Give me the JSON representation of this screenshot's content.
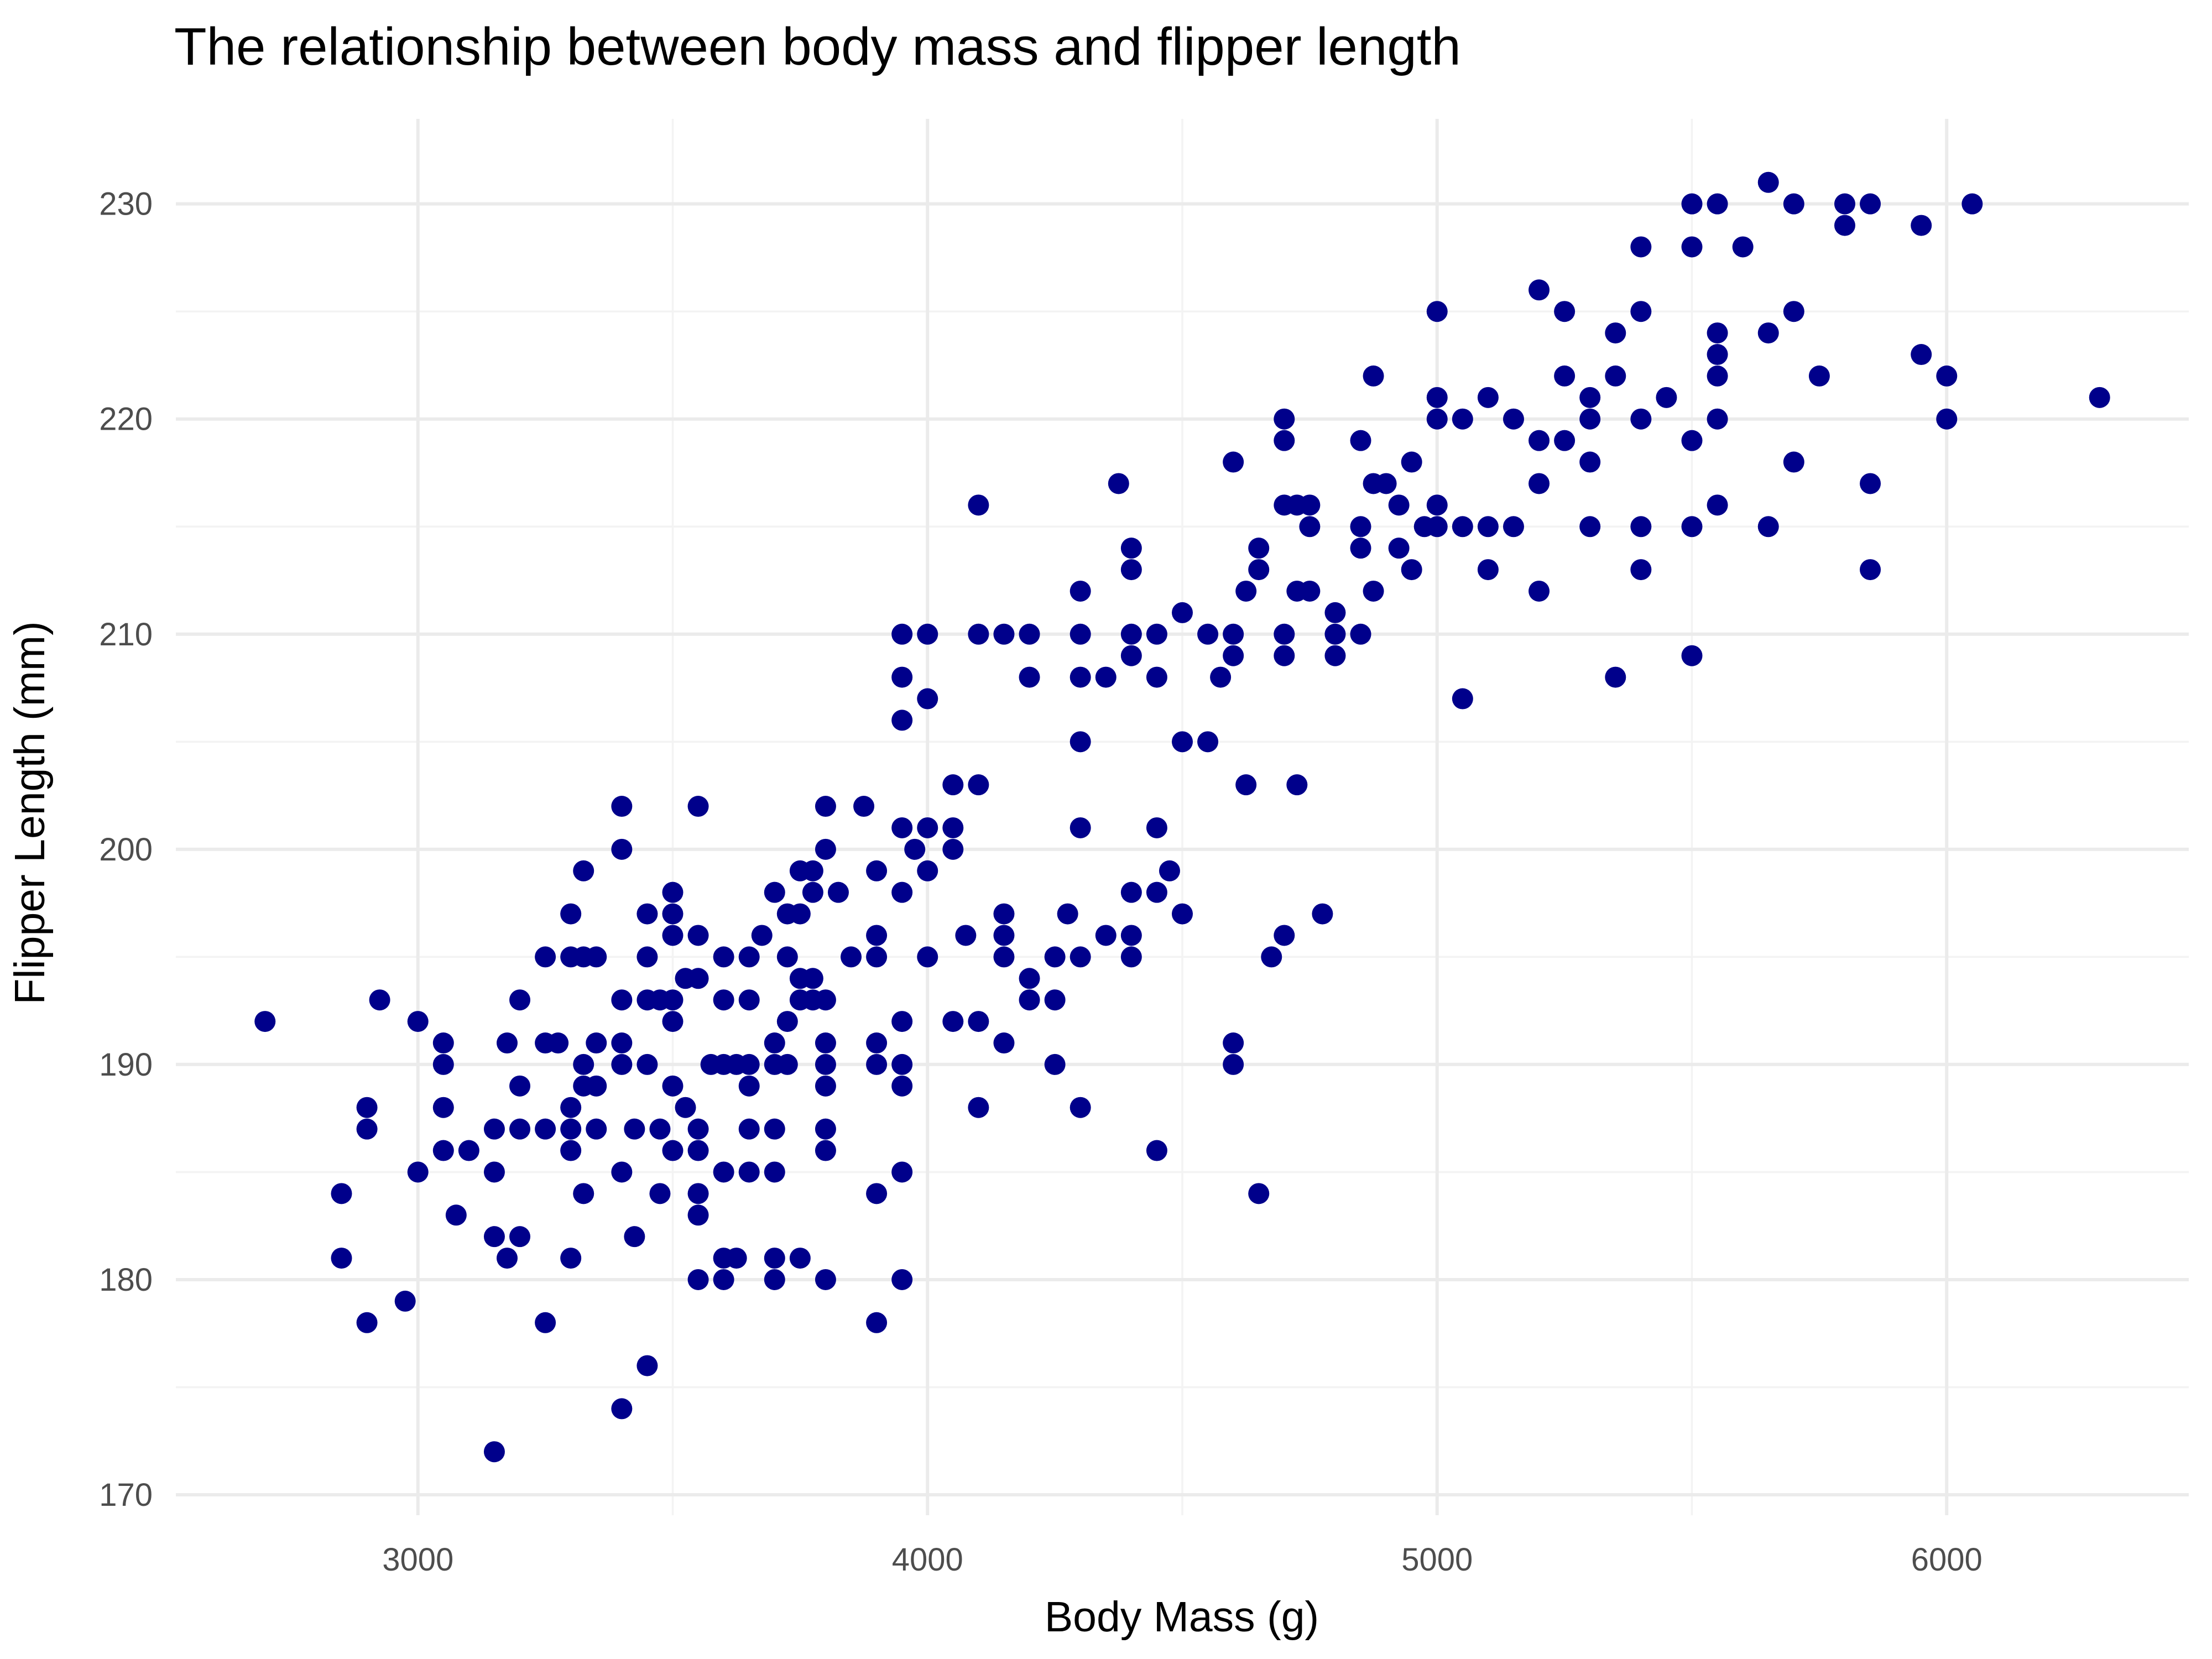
{
  "chart_data": {
    "type": "scatter",
    "title": "The relationship between body mass and flipper length",
    "xlabel": "Body Mass (g)",
    "ylabel": "Flipper Length (mm)",
    "xlim": [
      2525,
      6475
    ],
    "ylim": [
      169.05,
      233.95
    ],
    "x_ticks": [
      3000,
      4000,
      5000,
      6000
    ],
    "y_ticks": [
      170,
      180,
      190,
      200,
      210,
      220,
      230
    ],
    "grid": true,
    "legend": "none",
    "point_color": "#00008b",
    "points": [
      [
        2700,
        192
      ],
      [
        2850,
        184
      ],
      [
        2850,
        181
      ],
      [
        2900,
        188
      ],
      [
        2900,
        187
      ],
      [
        2900,
        178
      ],
      [
        2925,
        193
      ],
      [
        2975,
        179
      ],
      [
        3000,
        192
      ],
      [
        3000,
        185
      ],
      [
        3050,
        191
      ],
      [
        3050,
        190
      ],
      [
        3050,
        188
      ],
      [
        3050,
        186
      ],
      [
        3075,
        183
      ],
      [
        3100,
        186
      ],
      [
        3150,
        187
      ],
      [
        3150,
        185
      ],
      [
        3150,
        182
      ],
      [
        3150,
        172
      ],
      [
        3175,
        191
      ],
      [
        3175,
        181
      ],
      [
        3200,
        193
      ],
      [
        3200,
        189
      ],
      [
        3200,
        187
      ],
      [
        3200,
        182
      ],
      [
        3250,
        195
      ],
      [
        3250,
        191
      ],
      [
        3250,
        187
      ],
      [
        3250,
        178
      ],
      [
        3275,
        191
      ],
      [
        3300,
        197
      ],
      [
        3300,
        195
      ],
      [
        3300,
        188
      ],
      [
        3300,
        187
      ],
      [
        3300,
        186
      ],
      [
        3300,
        181
      ],
      [
        3325,
        195
      ],
      [
        3325,
        199
      ],
      [
        3325,
        190
      ],
      [
        3325,
        189
      ],
      [
        3325,
        184
      ],
      [
        3350,
        195
      ],
      [
        3350,
        191
      ],
      [
        3350,
        189
      ],
      [
        3350,
        187
      ],
      [
        3400,
        202
      ],
      [
        3400,
        200
      ],
      [
        3400,
        193
      ],
      [
        3400,
        191
      ],
      [
        3400,
        190
      ],
      [
        3400,
        185
      ],
      [
        3400,
        174
      ],
      [
        3425,
        187
      ],
      [
        3425,
        182
      ],
      [
        3450,
        197
      ],
      [
        3450,
        195
      ],
      [
        3450,
        193
      ],
      [
        3450,
        190
      ],
      [
        3450,
        176
      ],
      [
        3475,
        193
      ],
      [
        3475,
        187
      ],
      [
        3475,
        184
      ],
      [
        3500,
        198
      ],
      [
        3500,
        197
      ],
      [
        3500,
        196
      ],
      [
        3500,
        193
      ],
      [
        3500,
        192
      ],
      [
        3500,
        189
      ],
      [
        3500,
        186
      ],
      [
        3525,
        194
      ],
      [
        3525,
        188
      ],
      [
        3550,
        202
      ],
      [
        3550,
        196
      ],
      [
        3550,
        194
      ],
      [
        3550,
        187
      ],
      [
        3550,
        186
      ],
      [
        3550,
        184
      ],
      [
        3550,
        183
      ],
      [
        3550,
        180
      ],
      [
        3575,
        190
      ],
      [
        3600,
        195
      ],
      [
        3600,
        193
      ],
      [
        3600,
        190
      ],
      [
        3600,
        185
      ],
      [
        3600,
        181
      ],
      [
        3600,
        180
      ],
      [
        3625,
        190
      ],
      [
        3625,
        181
      ],
      [
        3650,
        195
      ],
      [
        3650,
        193
      ],
      [
        3650,
        190
      ],
      [
        3650,
        189
      ],
      [
        3650,
        187
      ],
      [
        3650,
        185
      ],
      [
        3675,
        196
      ],
      [
        3700,
        198
      ],
      [
        3700,
        191
      ],
      [
        3700,
        190
      ],
      [
        3700,
        187
      ],
      [
        3700,
        185
      ],
      [
        3700,
        181
      ],
      [
        3700,
        180
      ],
      [
        3725,
        197
      ],
      [
        3725,
        195
      ],
      [
        3725,
        192
      ],
      [
        3725,
        190
      ],
      [
        3750,
        199
      ],
      [
        3750,
        197
      ],
      [
        3750,
        194
      ],
      [
        3750,
        193
      ],
      [
        3750,
        181
      ],
      [
        3775,
        199
      ],
      [
        3775,
        194
      ],
      [
        3775,
        198
      ],
      [
        3775,
        193
      ],
      [
        3800,
        202
      ],
      [
        3800,
        200
      ],
      [
        3800,
        193
      ],
      [
        3800,
        191
      ],
      [
        3800,
        190
      ],
      [
        3800,
        189
      ],
      [
        3800,
        187
      ],
      [
        3800,
        186
      ],
      [
        3800,
        180
      ],
      [
        3825,
        198
      ],
      [
        3850,
        195
      ],
      [
        3875,
        202
      ],
      [
        3900,
        199
      ],
      [
        3900,
        196
      ],
      [
        3900,
        195
      ],
      [
        3900,
        191
      ],
      [
        3900,
        190
      ],
      [
        3900,
        184
      ],
      [
        3900,
        178
      ],
      [
        3950,
        210
      ],
      [
        3950,
        208
      ],
      [
        3950,
        206
      ],
      [
        3950,
        201
      ],
      [
        3950,
        198
      ],
      [
        3950,
        192
      ],
      [
        3950,
        190
      ],
      [
        3950,
        189
      ],
      [
        3950,
        185
      ],
      [
        3950,
        180
      ],
      [
        3975,
        200
      ],
      [
        4000,
        210
      ],
      [
        4000,
        207
      ],
      [
        4000,
        201
      ],
      [
        4000,
        199
      ],
      [
        4000,
        195
      ],
      [
        4050,
        203
      ],
      [
        4050,
        201
      ],
      [
        4050,
        200
      ],
      [
        4050,
        192
      ],
      [
        4075,
        196
      ],
      [
        4100,
        216
      ],
      [
        4100,
        210
      ],
      [
        4100,
        203
      ],
      [
        4100,
        192
      ],
      [
        4100,
        188
      ],
      [
        4150,
        210
      ],
      [
        4150,
        197
      ],
      [
        4150,
        196
      ],
      [
        4150,
        195
      ],
      [
        4150,
        191
      ],
      [
        4200,
        210
      ],
      [
        4200,
        208
      ],
      [
        4200,
        194
      ],
      [
        4200,
        193
      ],
      [
        4250,
        195
      ],
      [
        4250,
        193
      ],
      [
        4250,
        190
      ],
      [
        4275,
        197
      ],
      [
        4300,
        212
      ],
      [
        4300,
        210
      ],
      [
        4300,
        208
      ],
      [
        4300,
        205
      ],
      [
        4300,
        201
      ],
      [
        4300,
        195
      ],
      [
        4300,
        188
      ],
      [
        4350,
        208
      ],
      [
        4350,
        196
      ],
      [
        4375,
        217
      ],
      [
        4400,
        214
      ],
      [
        4400,
        213
      ],
      [
        4400,
        210
      ],
      [
        4400,
        209
      ],
      [
        4400,
        198
      ],
      [
        4400,
        196
      ],
      [
        4400,
        195
      ],
      [
        4450,
        210
      ],
      [
        4450,
        208
      ],
      [
        4450,
        201
      ],
      [
        4450,
        198
      ],
      [
        4450,
        186
      ],
      [
        4475,
        199
      ],
      [
        4500,
        211
      ],
      [
        4500,
        205
      ],
      [
        4500,
        197
      ],
      [
        4550,
        210
      ],
      [
        4550,
        205
      ],
      [
        4575,
        208
      ],
      [
        4600,
        218
      ],
      [
        4600,
        210
      ],
      [
        4600,
        209
      ],
      [
        4600,
        191
      ],
      [
        4600,
        190
      ],
      [
        4625,
        212
      ],
      [
        4625,
        203
      ],
      [
        4650,
        214
      ],
      [
        4650,
        213
      ],
      [
        4650,
        184
      ],
      [
        4675,
        195
      ],
      [
        4700,
        220
      ],
      [
        4700,
        219
      ],
      [
        4700,
        216
      ],
      [
        4700,
        210
      ],
      [
        4700,
        209
      ],
      [
        4700,
        196
      ],
      [
        4725,
        216
      ],
      [
        4725,
        212
      ],
      [
        4725,
        203
      ],
      [
        4750,
        216
      ],
      [
        4750,
        215
      ],
      [
        4750,
        212
      ],
      [
        4775,
        197
      ],
      [
        4800,
        211
      ],
      [
        4800,
        210
      ],
      [
        4800,
        209
      ],
      [
        4850,
        219
      ],
      [
        4850,
        215
      ],
      [
        4850,
        214
      ],
      [
        4850,
        210
      ],
      [
        4875,
        222
      ],
      [
        4875,
        217
      ],
      [
        4875,
        212
      ],
      [
        4900,
        217
      ],
      [
        4925,
        216
      ],
      [
        4925,
        214
      ],
      [
        4950,
        218
      ],
      [
        4950,
        213
      ],
      [
        4975,
        215
      ],
      [
        5000,
        225
      ],
      [
        5000,
        221
      ],
      [
        5000,
        220
      ],
      [
        5000,
        216
      ],
      [
        5000,
        215
      ],
      [
        5050,
        220
      ],
      [
        5050,
        215
      ],
      [
        5050,
        207
      ],
      [
        5100,
        221
      ],
      [
        5100,
        215
      ],
      [
        5100,
        213
      ],
      [
        5150,
        220
      ],
      [
        5150,
        215
      ],
      [
        5200,
        226
      ],
      [
        5200,
        219
      ],
      [
        5200,
        217
      ],
      [
        5200,
        212
      ],
      [
        5250,
        225
      ],
      [
        5250,
        222
      ],
      [
        5250,
        219
      ],
      [
        5300,
        221
      ],
      [
        5300,
        220
      ],
      [
        5300,
        218
      ],
      [
        5300,
        215
      ],
      [
        5350,
        224
      ],
      [
        5350,
        222
      ],
      [
        5350,
        208
      ],
      [
        5400,
        228
      ],
      [
        5400,
        225
      ],
      [
        5400,
        220
      ],
      [
        5400,
        215
      ],
      [
        5400,
        213
      ],
      [
        5450,
        221
      ],
      [
        5500,
        230
      ],
      [
        5500,
        228
      ],
      [
        5500,
        219
      ],
      [
        5500,
        215
      ],
      [
        5500,
        209
      ],
      [
        5550,
        230
      ],
      [
        5550,
        224
      ],
      [
        5550,
        223
      ],
      [
        5550,
        222
      ],
      [
        5550,
        220
      ],
      [
        5550,
        216
      ],
      [
        5600,
        228
      ],
      [
        5650,
        231
      ],
      [
        5650,
        224
      ],
      [
        5650,
        215
      ],
      [
        5700,
        230
      ],
      [
        5700,
        225
      ],
      [
        5700,
        218
      ],
      [
        5750,
        222
      ],
      [
        5800,
        230
      ],
      [
        5800,
        229
      ],
      [
        5850,
        230
      ],
      [
        5850,
        217
      ],
      [
        5850,
        213
      ],
      [
        5950,
        229
      ],
      [
        5950,
        223
      ],
      [
        6000,
        222
      ],
      [
        6000,
        220
      ],
      [
        6050,
        230
      ],
      [
        6300,
        221
      ]
    ]
  }
}
